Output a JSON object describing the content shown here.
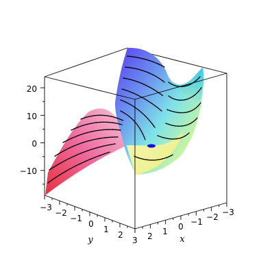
{
  "chart_data": {
    "type": "surface3d",
    "x_axis": {
      "label": "x",
      "range": [
        -3,
        3
      ],
      "ticks": [
        -3,
        -2,
        -1,
        0,
        1,
        2,
        3
      ],
      "tick_labels": [
        "−3",
        "−2",
        "−1",
        "0",
        "1",
        "2",
        "3"
      ]
    },
    "y_axis": {
      "label": "y",
      "range": [
        -3,
        3
      ],
      "ticks": [
        -3,
        -2,
        -1,
        0,
        1,
        2,
        3
      ],
      "tick_labels": [
        "−3",
        "−2",
        "−1",
        "0",
        "1",
        "2",
        "3"
      ]
    },
    "z_axis": {
      "label": "",
      "range": [
        -19,
        24
      ],
      "ticks": [
        -10,
        0,
        10,
        20
      ],
      "tick_labels": [
        "−10",
        "0",
        "10",
        "20"
      ]
    },
    "contour_lines": true,
    "critical_point": {
      "x": 0,
      "y": 0,
      "z": 0,
      "color": "#1010e0"
    },
    "colors": {
      "frame": "#000000",
      "surface_colormap": "rainbow",
      "contours": "#000000"
    },
    "grid": false,
    "legend": "none"
  }
}
